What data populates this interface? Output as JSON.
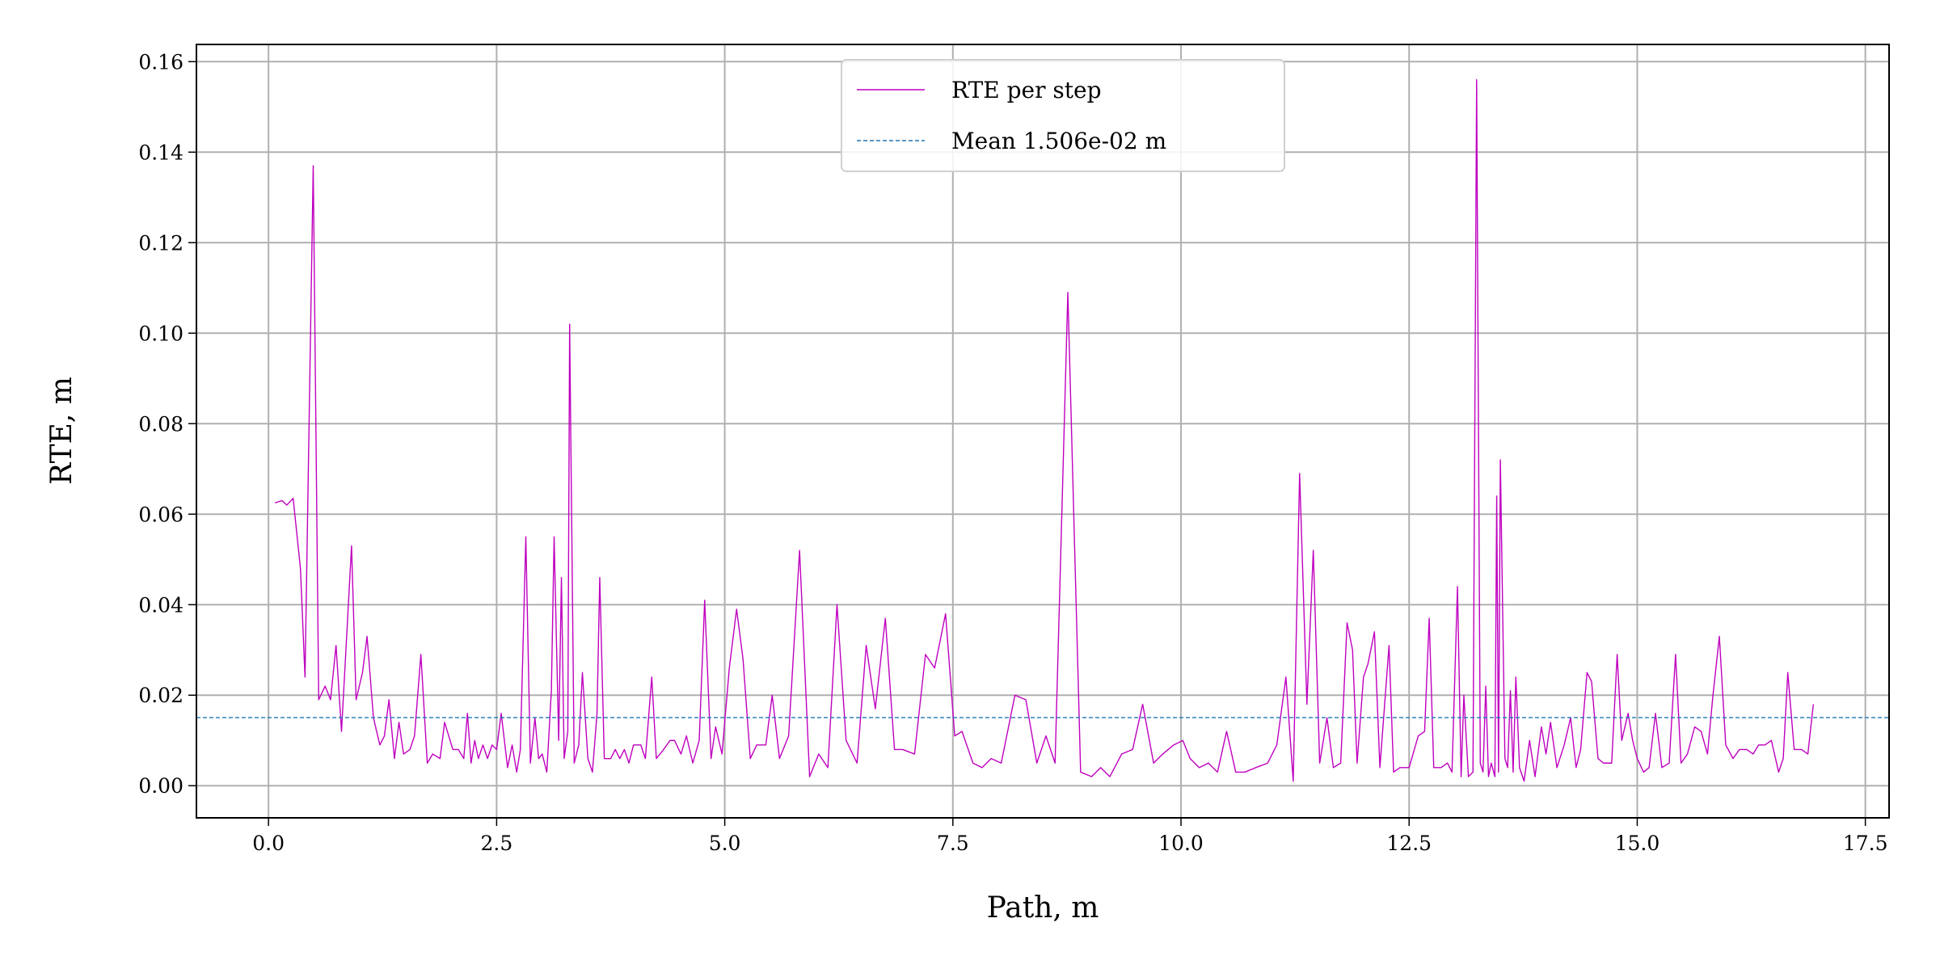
{
  "chart_data": {
    "type": "line",
    "xlabel": "Path, m",
    "ylabel": "RTE, m",
    "xlim": [
      -0.79,
      17.76
    ],
    "ylim": [
      -0.0071,
      0.1638
    ],
    "xticks": [
      {
        "value": 0,
        "label": "0.0"
      },
      2.5,
      {
        "value": 5,
        "label": "5.0"
      },
      7.5,
      {
        "value": 10,
        "label": "10.0"
      },
      12.5,
      {
        "value": 15,
        "label": "15.0"
      },
      17.5
    ],
    "yticks": [
      {
        "value": 0,
        "label": "0.00"
      },
      0.02,
      0.04,
      0.06,
      0.08,
      {
        "value": 0.1,
        "label": "0.10"
      },
      0.12,
      0.14,
      0.16
    ],
    "grid": true,
    "legend": "upper center",
    "x": [
      0.07,
      0.15,
      0.2,
      0.27,
      0.35,
      0.4,
      0.49,
      0.55,
      0.62,
      0.68,
      0.74,
      0.8,
      0.91,
      0.96,
      1.03,
      1.08,
      1.15,
      1.22,
      1.27,
      1.32,
      1.38,
      1.43,
      1.48,
      1.55,
      1.6,
      1.67,
      1.74,
      1.8,
      1.88,
      1.93,
      2.02,
      2.08,
      2.14,
      2.18,
      2.22,
      2.26,
      2.3,
      2.35,
      2.4,
      2.45,
      2.5,
      2.55,
      2.62,
      2.67,
      2.72,
      2.76,
      2.82,
      2.87,
      2.92,
      2.96,
      3.0,
      3.05,
      3.1,
      3.13,
      3.18,
      3.21,
      3.24,
      3.28,
      3.3,
      3.35,
      3.4,
      3.44,
      3.5,
      3.55,
      3.6,
      3.63,
      3.68,
      3.75,
      3.8,
      3.85,
      3.9,
      3.95,
      4.0,
      4.08,
      4.13,
      4.2,
      4.25,
      4.33,
      4.4,
      4.45,
      4.52,
      4.58,
      4.65,
      4.72,
      4.78,
      4.85,
      4.9,
      4.97,
      5.05,
      5.13,
      5.2,
      5.28,
      5.35,
      5.45,
      5.52,
      5.6,
      5.7,
      5.82,
      5.93,
      6.03,
      6.13,
      6.23,
      6.33,
      6.45,
      6.55,
      6.65,
      6.76,
      6.86,
      6.95,
      7.08,
      7.2,
      7.3,
      7.42,
      7.52,
      7.6,
      7.72,
      7.82,
      7.92,
      8.03,
      8.18,
      8.3,
      8.42,
      8.52,
      8.62,
      8.76,
      8.9,
      9.02,
      9.12,
      9.22,
      9.35,
      9.47,
      9.58,
      9.7,
      9.8,
      9.92,
      10.02,
      10.1,
      10.2,
      10.3,
      10.4,
      10.5,
      10.6,
      10.7,
      10.82,
      10.95,
      11.05,
      11.15,
      11.23,
      11.3,
      11.38,
      11.45,
      11.52,
      11.6,
      11.67,
      11.75,
      11.82,
      11.88,
      11.93,
      12.0,
      12.05,
      12.12,
      12.18,
      12.28,
      12.33,
      12.4,
      12.5,
      12.6,
      12.67,
      12.72,
      12.77,
      12.85,
      12.92,
      12.97,
      13.03,
      13.07,
      13.1,
      13.15,
      13.2,
      13.24,
      13.28,
      13.31,
      13.34,
      13.37,
      13.4,
      13.44,
      13.46,
      13.48,
      13.5,
      13.55,
      13.58,
      13.61,
      13.64,
      13.67,
      13.71,
      13.76,
      13.82,
      13.88,
      13.95,
      14.0,
      14.05,
      14.12,
      14.2,
      14.27,
      14.33,
      14.38,
      14.45,
      14.5,
      14.57,
      14.63,
      14.72,
      14.78,
      14.83,
      14.9,
      14.95,
      15.0,
      15.07,
      15.13,
      15.2,
      15.27,
      15.35,
      15.42,
      15.48,
      15.55,
      15.63,
      15.7,
      15.77,
      15.83,
      15.9,
      15.97,
      16.05,
      16.12,
      16.2,
      16.27,
      16.33,
      16.4,
      16.47,
      16.55,
      16.6,
      16.65,
      16.72,
      16.8,
      16.87,
      16.93
    ],
    "series": [
      {
        "name": "RTE per step",
        "color": "#bf00bf",
        "values": [
          0.0625,
          0.063,
          0.062,
          0.0635,
          0.048,
          0.024,
          0.137,
          0.019,
          0.022,
          0.019,
          0.031,
          0.012,
          0.053,
          0.019,
          0.025,
          0.033,
          0.015,
          0.009,
          0.011,
          0.019,
          0.006,
          0.014,
          0.007,
          0.008,
          0.011,
          0.029,
          0.005,
          0.007,
          0.006,
          0.014,
          0.008,
          0.008,
          0.006,
          0.016,
          0.005,
          0.01,
          0.006,
          0.009,
          0.006,
          0.009,
          0.008,
          0.016,
          0.004,
          0.009,
          0.003,
          0.008,
          0.055,
          0.005,
          0.015,
          0.006,
          0.007,
          0.003,
          0.021,
          0.055,
          0.01,
          0.046,
          0.006,
          0.012,
          0.102,
          0.005,
          0.009,
          0.025,
          0.006,
          0.003,
          0.016,
          0.046,
          0.006,
          0.006,
          0.008,
          0.006,
          0.008,
          0.005,
          0.009,
          0.009,
          0.006,
          0.024,
          0.006,
          0.008,
          0.01,
          0.01,
          0.007,
          0.011,
          0.005,
          0.01,
          0.041,
          0.006,
          0.013,
          0.007,
          0.026,
          0.039,
          0.028,
          0.006,
          0.009,
          0.009,
          0.02,
          0.006,
          0.011,
          0.052,
          0.002,
          0.007,
          0.004,
          0.04,
          0.01,
          0.005,
          0.031,
          0.017,
          0.037,
          0.008,
          0.008,
          0.007,
          0.029,
          0.026,
          0.038,
          0.011,
          0.012,
          0.005,
          0.004,
          0.006,
          0.005,
          0.02,
          0.019,
          0.005,
          0.011,
          0.005,
          0.109,
          0.003,
          0.002,
          0.004,
          0.002,
          0.007,
          0.008,
          0.018,
          0.005,
          0.007,
          0.009,
          0.01,
          0.006,
          0.004,
          0.005,
          0.003,
          0.012,
          0.003,
          0.003,
          0.004,
          0.005,
          0.009,
          0.024,
          0.001,
          0.069,
          0.018,
          0.052,
          0.005,
          0.015,
          0.004,
          0.005,
          0.036,
          0.03,
          0.005,
          0.024,
          0.027,
          0.034,
          0.004,
          0.031,
          0.003,
          0.004,
          0.004,
          0.011,
          0.012,
          0.037,
          0.004,
          0.004,
          0.005,
          0.003,
          0.044,
          0.002,
          0.02,
          0.002,
          0.003,
          0.156,
          0.005,
          0.003,
          0.022,
          0.002,
          0.005,
          0.002,
          0.064,
          0.003,
          0.072,
          0.006,
          0.004,
          0.021,
          0.003,
          0.024,
          0.004,
          0.001,
          0.01,
          0.002,
          0.013,
          0.007,
          0.014,
          0.004,
          0.009,
          0.015,
          0.004,
          0.008,
          0.025,
          0.023,
          0.006,
          0.005,
          0.005,
          0.029,
          0.01,
          0.016,
          0.01,
          0.006,
          0.003,
          0.004,
          0.016,
          0.004,
          0.005,
          0.029,
          0.005,
          0.007,
          0.013,
          0.012,
          0.007,
          0.02,
          0.033,
          0.009,
          0.006,
          0.008,
          0.008,
          0.007,
          0.009,
          0.009,
          0.01,
          0.003,
          0.006,
          0.025,
          0.008,
          0.008,
          0.007,
          0.018
        ]
      },
      {
        "name": "Mean 1.506e-02 m",
        "color": "#1f77b4",
        "style": "dashed",
        "value": 0.01506
      }
    ]
  }
}
